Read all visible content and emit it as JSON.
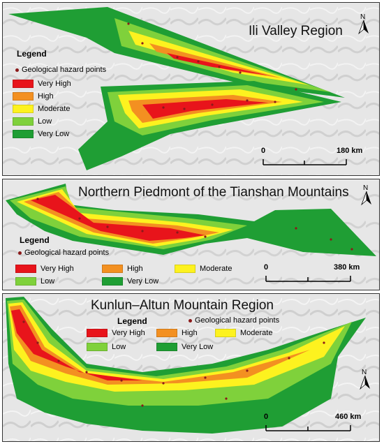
{
  "colors": {
    "very_high": "#e8141b",
    "high": "#f39021",
    "moderate": "#fdf21f",
    "low": "#7fd13b",
    "very_low": "#1f9e34",
    "hazard_point": "#8b1a1a"
  },
  "panels": [
    {
      "title": "Ili Valley Region",
      "legend_title": "Legend",
      "points_label": "Geological hazard points",
      "classes": [
        "Very High",
        "High",
        "Moderate",
        "Low",
        "Very Low"
      ],
      "scale_start": "0",
      "scale_end": "180 km",
      "north_label": "N"
    },
    {
      "title": "Northern Piedmont of the Tianshan Mountains",
      "legend_title": "Legend",
      "points_label": "Geological hazard points",
      "classes": [
        "Very High",
        "High",
        "Moderate",
        "Low",
        "Very Low"
      ],
      "scale_start": "0",
      "scale_end": "380 km",
      "north_label": "N"
    },
    {
      "title": "Kunlun–Altun Mountain Region",
      "legend_title": "Legend",
      "points_label": "Geological hazard points",
      "classes": [
        "Very High",
        "High",
        "Moderate",
        "Low",
        "Very Low"
      ],
      "scale_start": "0",
      "scale_end": "460 km",
      "north_label": "N"
    }
  ]
}
